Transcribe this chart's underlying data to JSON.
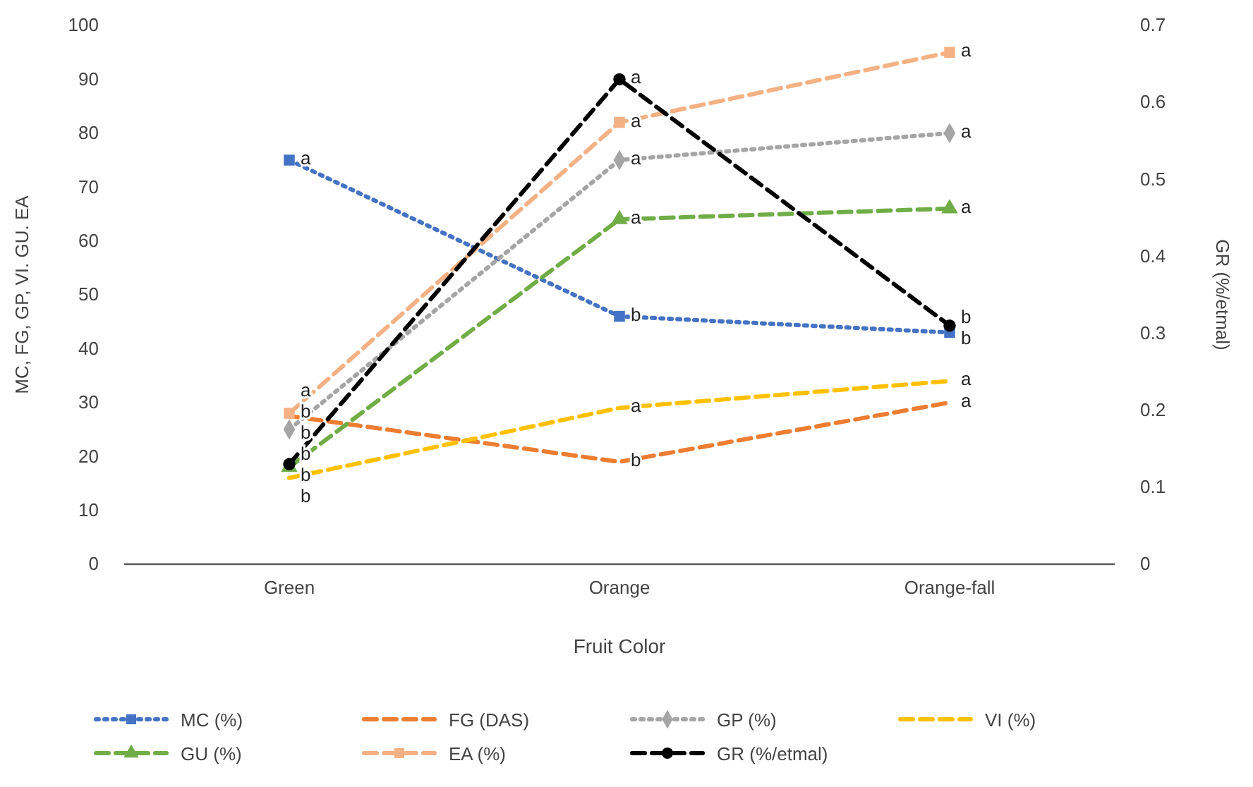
{
  "chart_data": {
    "type": "line",
    "categories": [
      "Green",
      "Orange",
      "Orange-fall"
    ],
    "xlabel": "Fruit Color",
    "ylabel": "MC, FG, GP, VI. GU. EA",
    "y2label": "GR (%/etmal)",
    "ylim": [
      0,
      100
    ],
    "yticks": [
      0,
      10,
      20,
      30,
      40,
      50,
      60,
      70,
      80,
      90,
      100
    ],
    "y2lim": [
      0,
      0.7
    ],
    "y2ticks": [
      0,
      0.1,
      0.2,
      0.3,
      0.4,
      0.5,
      0.6,
      0.7
    ],
    "grid": false,
    "legend": "bottom",
    "series": [
      {
        "name": "MC (%)",
        "color": "#4472c4",
        "values": [
          75,
          46,
          43
        ],
        "marker": "square",
        "line_style": "dotted",
        "value_labels": [
          "a",
          "b",
          "b"
        ]
      },
      {
        "name": "FG (DAS)",
        "color": "#ed7d31",
        "values": [
          27.5,
          19,
          30
        ],
        "marker": "none",
        "line_style": "dashed",
        "value_labels": [
          "b",
          "b",
          "a"
        ]
      },
      {
        "name": "GP (%)",
        "color": "#a5a5a5",
        "values": [
          25,
          75,
          80
        ],
        "marker": "diamond",
        "line_style": "dotted",
        "value_labels": [
          "b",
          "a",
          "a"
        ]
      },
      {
        "name": "VI (%)",
        "color": "#ffc000",
        "values": [
          16,
          29,
          34
        ],
        "marker": "none",
        "line_style": "dashed",
        "value_labels": [
          "b",
          "a",
          "a"
        ]
      },
      {
        "name": "GU (%)",
        "color": "#70ad47",
        "values": [
          18,
          64,
          66
        ],
        "marker": "triangle",
        "line_style": "dashed",
        "value_labels": [
          "b",
          "a",
          "a"
        ]
      },
      {
        "name": "EA (%)",
        "color": "#f4b183",
        "values": [
          28,
          82,
          95
        ],
        "marker": "square",
        "line_style": "dashed",
        "value_labels": [
          "a",
          "a",
          "a"
        ]
      },
      {
        "name": "GR (%/etmal)",
        "color": "#000000",
        "values": [
          0.13,
          0.63,
          0.31
        ],
        "axis": "y2",
        "marker": "circle",
        "line_style": "dashed",
        "value_labels": [
          "b",
          "a",
          "b"
        ]
      }
    ]
  }
}
